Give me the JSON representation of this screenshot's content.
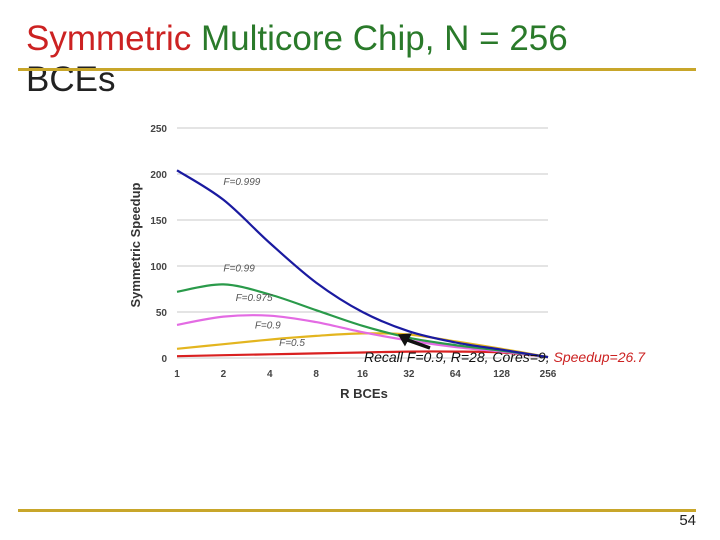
{
  "slide": {
    "title_part1": "Symmetric",
    "title_part2": "Multicore Chip,",
    "title_part3": "N = 256",
    "title_part4": "BCEs",
    "page_number": "54",
    "annotation_main": "Recall F=0.9,  R=28, Cores=9, ",
    "annotation_highlight": "Speedup=26.7",
    "title_colors": {
      "red": "#cc2222",
      "green": "#2a7a2a"
    },
    "rule_color": "#c8a62a"
  },
  "chart_data": {
    "type": "line",
    "xlabel": "R BCEs",
    "ylabel": "Symmetric Speedup",
    "x": [
      1,
      2,
      4,
      8,
      16,
      32,
      64,
      128,
      256
    ],
    "x_tick_labels": [
      "1",
      "2",
      "4",
      "8",
      "16",
      "32",
      "64",
      "128",
      "256"
    ],
    "x_scale": "log2",
    "ylim": [
      0,
      250
    ],
    "y_ticks": [
      0,
      50,
      100,
      150,
      200,
      250
    ],
    "grid": true,
    "series": [
      {
        "name": "F=0.999",
        "color": "#1a1aa0",
        "values": [
          204,
          172,
          125,
          82,
          50,
          29,
          17,
          9,
          1
        ]
      },
      {
        "name": "F=0.99",
        "color": "#2a9a4a",
        "values": [
          72,
          80,
          69,
          52,
          35,
          22,
          14,
          8,
          1
        ]
      },
      {
        "name": "F=0.975",
        "color": "#e36be3",
        "values": [
          36,
          45,
          46,
          39,
          28,
          19,
          12,
          7,
          1
        ]
      },
      {
        "name": "F=0.9",
        "color": "#e3b51f",
        "values": [
          10,
          15,
          20,
          24,
          26.7,
          25.5,
          18,
          10,
          1
        ]
      },
      {
        "name": "F=0.5",
        "color": "#d92020",
        "values": [
          2,
          3,
          4,
          5,
          6,
          7,
          7,
          6,
          1
        ]
      }
    ],
    "annotation_point": {
      "x": 28,
      "y": 26.7
    }
  }
}
